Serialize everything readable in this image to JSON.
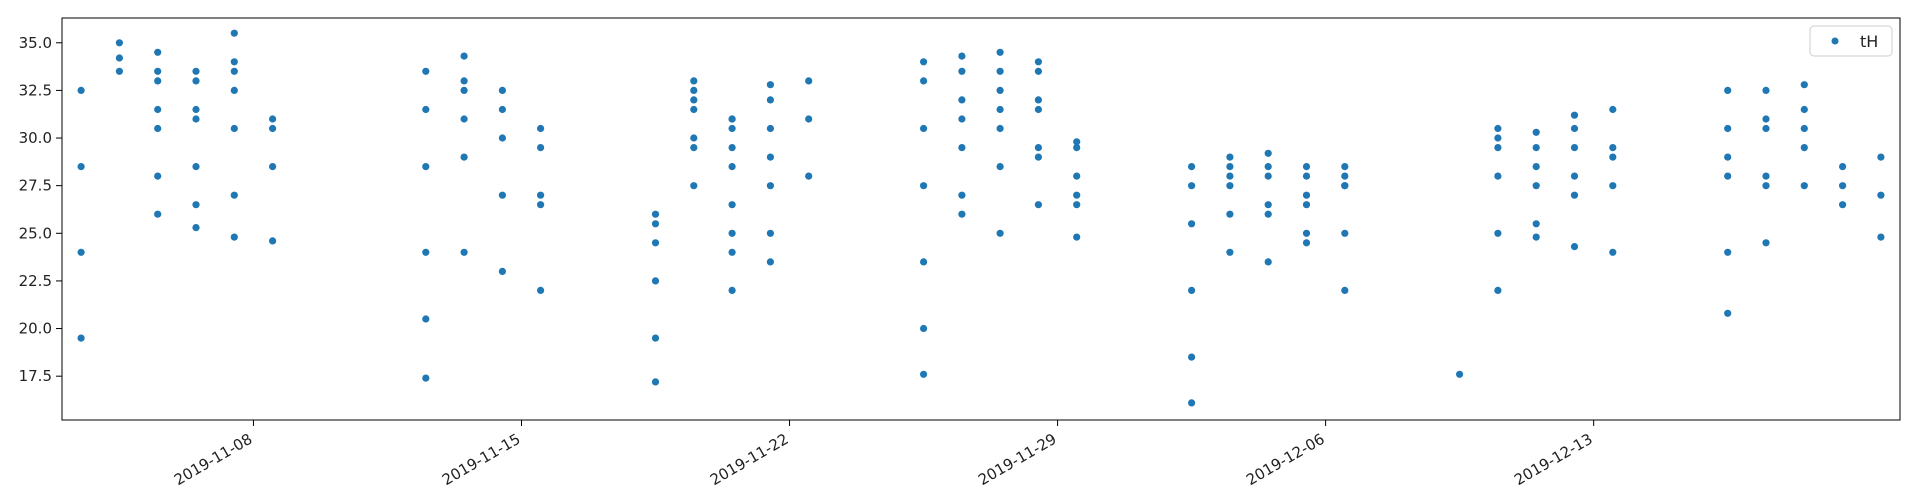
{
  "chart_data": {
    "type": "scatter",
    "xlabel": "",
    "ylabel": "",
    "xlim": [
      "2019-11-03",
      "2019-12-21"
    ],
    "ylim": [
      15.2,
      36.3
    ],
    "yticks": [
      17.5,
      20.0,
      22.5,
      25.0,
      27.5,
      30.0,
      32.5,
      35.0
    ],
    "ytick_labels": [
      "17.5",
      "20.0",
      "22.5",
      "25.0",
      "27.5",
      "30.0",
      "32.5",
      "35.0"
    ],
    "xticks": [
      "2019-11-08",
      "2019-11-15",
      "2019-11-22",
      "2019-11-29",
      "2019-12-06",
      "2019-12-13"
    ],
    "xtick_labels": [
      "2019-11-08",
      "2019-11-15",
      "2019-11-22",
      "2019-11-29",
      "2019-12-06",
      "2019-12-13"
    ],
    "grid": false,
    "legend_position": "top-right",
    "color": "#1f77b4",
    "series": [
      {
        "name": "tH",
        "points": [
          [
            "2019-11-03",
            19.5
          ],
          [
            "2019-11-03",
            24.0
          ],
          [
            "2019-11-03",
            28.5
          ],
          [
            "2019-11-03",
            32.5
          ],
          [
            "2019-11-04",
            34.2
          ],
          [
            "2019-11-04",
            35.0
          ],
          [
            "2019-11-04",
            33.5
          ],
          [
            "2019-11-05",
            26.0
          ],
          [
            "2019-11-05",
            30.5
          ],
          [
            "2019-11-05",
            33.5
          ],
          [
            "2019-11-05",
            34.5
          ],
          [
            "2019-11-05",
            28.0
          ],
          [
            "2019-11-05",
            31.5
          ],
          [
            "2019-11-05",
            33.0
          ],
          [
            "2019-11-06",
            25.3
          ],
          [
            "2019-11-06",
            28.5
          ],
          [
            "2019-11-06",
            31.0
          ],
          [
            "2019-11-06",
            33.5
          ],
          [
            "2019-11-06",
            26.5
          ],
          [
            "2019-11-06",
            31.5
          ],
          [
            "2019-11-06",
            33.0
          ],
          [
            "2019-11-07",
            24.8
          ],
          [
            "2019-11-07",
            27.0
          ],
          [
            "2019-11-07",
            30.5
          ],
          [
            "2019-11-07",
            33.5
          ],
          [
            "2019-11-07",
            35.5
          ],
          [
            "2019-11-07",
            34.0
          ],
          [
            "2019-11-07",
            32.5
          ],
          [
            "2019-11-08",
            24.6
          ],
          [
            "2019-11-08",
            28.5
          ],
          [
            "2019-11-08",
            30.5
          ],
          [
            "2019-11-08",
            31.0
          ],
          [
            "2019-11-12",
            17.4
          ],
          [
            "2019-11-12",
            20.5
          ],
          [
            "2019-11-12",
            24.0
          ],
          [
            "2019-11-12",
            28.5
          ],
          [
            "2019-11-12",
            31.5
          ],
          [
            "2019-11-12",
            33.5
          ],
          [
            "2019-11-13",
            31.0
          ],
          [
            "2019-11-13",
            24.0
          ],
          [
            "2019-11-13",
            29.0
          ],
          [
            "2019-11-13",
            32.5
          ],
          [
            "2019-11-13",
            34.3
          ],
          [
            "2019-11-13",
            33.0
          ],
          [
            "2019-11-14",
            23.0
          ],
          [
            "2019-11-14",
            27.0
          ],
          [
            "2019-11-14",
            30.0
          ],
          [
            "2019-11-14",
            31.5
          ],
          [
            "2019-11-14",
            32.5
          ],
          [
            "2019-11-15",
            22.0
          ],
          [
            "2019-11-15",
            26.5
          ],
          [
            "2019-11-15",
            29.5
          ],
          [
            "2019-11-15",
            30.5
          ],
          [
            "2019-11-15",
            27.0
          ],
          [
            "2019-11-18",
            17.2
          ],
          [
            "2019-11-18",
            19.5
          ],
          [
            "2019-11-18",
            22.5
          ],
          [
            "2019-11-18",
            25.5
          ],
          [
            "2019-11-18",
            24.5
          ],
          [
            "2019-11-18",
            26.0
          ],
          [
            "2019-11-19",
            27.5
          ],
          [
            "2019-11-19",
            29.5
          ],
          [
            "2019-11-19",
            31.5
          ],
          [
            "2019-11-19",
            32.0
          ],
          [
            "2019-11-19",
            30.0
          ],
          [
            "2019-11-19",
            32.5
          ],
          [
            "2019-11-19",
            33.0
          ],
          [
            "2019-11-20",
            22.0
          ],
          [
            "2019-11-20",
            25.0
          ],
          [
            "2019-11-20",
            28.5
          ],
          [
            "2019-11-20",
            30.5
          ],
          [
            "2019-11-20",
            31.0
          ],
          [
            "2019-11-20",
            24.0
          ],
          [
            "2019-11-20",
            26.5
          ],
          [
            "2019-11-20",
            29.5
          ],
          [
            "2019-11-20",
            31.0
          ],
          [
            "2019-11-21",
            25.0
          ],
          [
            "2019-11-21",
            29.0
          ],
          [
            "2019-11-21",
            32.0
          ],
          [
            "2019-11-21",
            32.8
          ],
          [
            "2019-11-21",
            23.5
          ],
          [
            "2019-11-21",
            27.5
          ],
          [
            "2019-11-21",
            30.5
          ],
          [
            "2019-11-22",
            28.0
          ],
          [
            "2019-11-22",
            31.0
          ],
          [
            "2019-11-22",
            33.0
          ],
          [
            "2019-11-25",
            17.6
          ],
          [
            "2019-11-25",
            20.0
          ],
          [
            "2019-11-25",
            23.5
          ],
          [
            "2019-11-25",
            27.5
          ],
          [
            "2019-11-25",
            30.5
          ],
          [
            "2019-11-25",
            33.0
          ],
          [
            "2019-11-25",
            34.0
          ],
          [
            "2019-11-26",
            26.0
          ],
          [
            "2019-11-26",
            29.5
          ],
          [
            "2019-11-26",
            32.0
          ],
          [
            "2019-11-26",
            34.3
          ],
          [
            "2019-11-26",
            27.0
          ],
          [
            "2019-11-26",
            31.0
          ],
          [
            "2019-11-26",
            33.5
          ],
          [
            "2019-11-27",
            25.0
          ],
          [
            "2019-11-27",
            28.5
          ],
          [
            "2019-11-27",
            31.5
          ],
          [
            "2019-11-27",
            33.5
          ],
          [
            "2019-11-27",
            34.5
          ],
          [
            "2019-11-27",
            32.5
          ],
          [
            "2019-11-27",
            30.5
          ],
          [
            "2019-11-28",
            26.5
          ],
          [
            "2019-11-28",
            29.5
          ],
          [
            "2019-11-28",
            32.0
          ],
          [
            "2019-11-28",
            33.5
          ],
          [
            "2019-11-28",
            34.0
          ],
          [
            "2019-11-28",
            31.5
          ],
          [
            "2019-11-28",
            29.0
          ],
          [
            "2019-11-29",
            26.5
          ],
          [
            "2019-11-29",
            27.0
          ],
          [
            "2019-11-29",
            24.8
          ],
          [
            "2019-11-29",
            28.0
          ],
          [
            "2019-11-29",
            29.5
          ],
          [
            "2019-11-29",
            29.8
          ],
          [
            "2019-12-02",
            16.1
          ],
          [
            "2019-12-02",
            18.5
          ],
          [
            "2019-12-02",
            22.0
          ],
          [
            "2019-12-02",
            25.5
          ],
          [
            "2019-12-02",
            27.5
          ],
          [
            "2019-12-02",
            28.5
          ],
          [
            "2019-12-03",
            24.0
          ],
          [
            "2019-12-03",
            27.5
          ],
          [
            "2019-12-03",
            29.0
          ],
          [
            "2019-12-03",
            28.0
          ],
          [
            "2019-12-03",
            26.0
          ],
          [
            "2019-12-03",
            28.5
          ],
          [
            "2019-12-04",
            26.5
          ],
          [
            "2019-12-04",
            28.5
          ],
          [
            "2019-12-04",
            29.2
          ],
          [
            "2019-12-04",
            23.5
          ],
          [
            "2019-12-04",
            26.0
          ],
          [
            "2019-12-04",
            28.0
          ],
          [
            "2019-12-05",
            25.0
          ],
          [
            "2019-12-05",
            27.0
          ],
          [
            "2019-12-05",
            28.5
          ],
          [
            "2019-12-05",
            24.5
          ],
          [
            "2019-12-05",
            26.5
          ],
          [
            "2019-12-05",
            28.0
          ],
          [
            "2019-12-06",
            22.0
          ],
          [
            "2019-12-06",
            25.0
          ],
          [
            "2019-12-06",
            27.5
          ],
          [
            "2019-12-06",
            28.5
          ],
          [
            "2019-12-06",
            28.0
          ],
          [
            "2019-12-06",
            27.5
          ],
          [
            "2019-12-09",
            17.6
          ],
          [
            "2019-12-10",
            22.0
          ],
          [
            "2019-12-10",
            25.0
          ],
          [
            "2019-12-10",
            28.0
          ],
          [
            "2019-12-10",
            30.0
          ],
          [
            "2019-12-10",
            30.5
          ],
          [
            "2019-12-10",
            29.5
          ],
          [
            "2019-12-11",
            24.8
          ],
          [
            "2019-12-11",
            27.5
          ],
          [
            "2019-12-11",
            29.5
          ],
          [
            "2019-12-11",
            30.3
          ],
          [
            "2019-12-11",
            25.5
          ],
          [
            "2019-12-11",
            28.5
          ],
          [
            "2019-12-12",
            24.3
          ],
          [
            "2019-12-12",
            27.0
          ],
          [
            "2019-12-12",
            29.5
          ],
          [
            "2019-12-12",
            30.5
          ],
          [
            "2019-12-12",
            31.2
          ],
          [
            "2019-12-12",
            28.0
          ],
          [
            "2019-12-13",
            24.0
          ],
          [
            "2019-12-13",
            27.5
          ],
          [
            "2019-12-13",
            29.5
          ],
          [
            "2019-12-13",
            31.5
          ],
          [
            "2019-12-13",
            29.0
          ],
          [
            "2019-12-16",
            20.8
          ],
          [
            "2019-12-16",
            24.0
          ],
          [
            "2019-12-16",
            28.0
          ],
          [
            "2019-12-16",
            30.5
          ],
          [
            "2019-12-16",
            32.5
          ],
          [
            "2019-12-16",
            29.0
          ],
          [
            "2019-12-17",
            24.5
          ],
          [
            "2019-12-17",
            27.5
          ],
          [
            "2019-12-17",
            30.5
          ],
          [
            "2019-12-17",
            32.5
          ],
          [
            "2019-12-17",
            31.0
          ],
          [
            "2019-12-17",
            28.0
          ],
          [
            "2019-12-18",
            27.5
          ],
          [
            "2019-12-18",
            30.5
          ],
          [
            "2019-12-18",
            32.8
          ],
          [
            "2019-12-18",
            31.5
          ],
          [
            "2019-12-18",
            29.5
          ],
          [
            "2019-12-19",
            27.5
          ],
          [
            "2019-12-19",
            28.5
          ],
          [
            "2019-12-19",
            26.5
          ],
          [
            "2019-12-20",
            24.8
          ],
          [
            "2019-12-20",
            27.0
          ],
          [
            "2019-12-20",
            29.0
          ]
        ]
      }
    ]
  }
}
